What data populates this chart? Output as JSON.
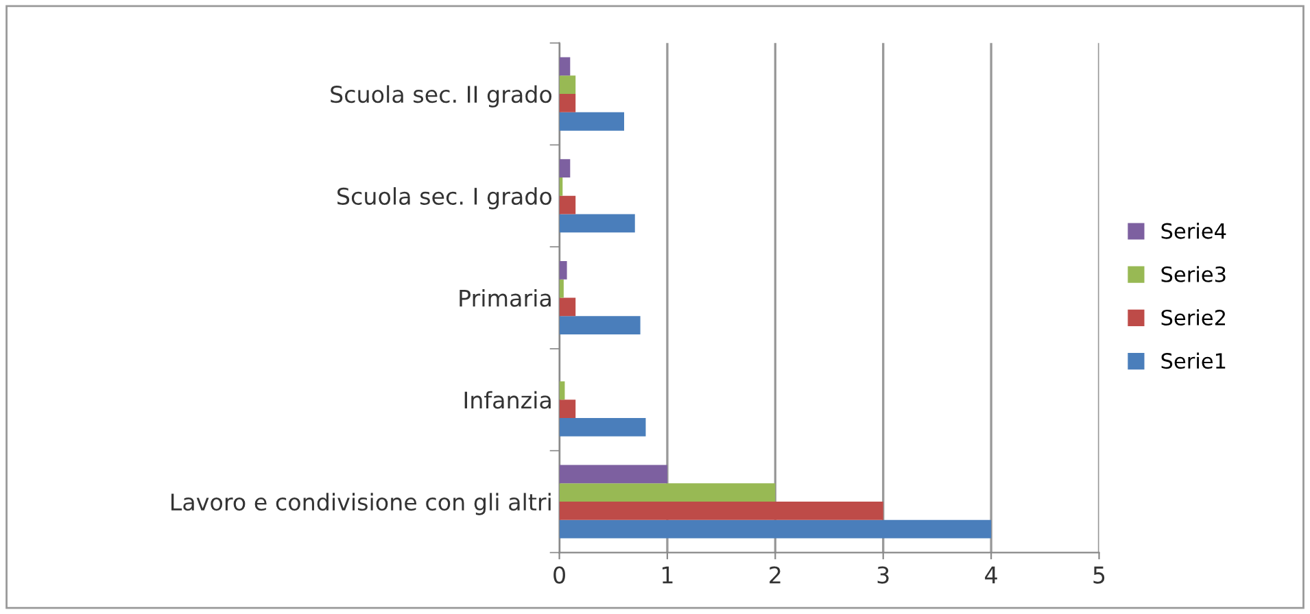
{
  "chart_data": {
    "type": "bar",
    "orientation": "horizontal",
    "categories": [
      "Scuola sec. II grado",
      "Scuola sec. I grado",
      "Primaria",
      "Infanzia",
      "Lavoro e condivisione con gli altri"
    ],
    "series": [
      {
        "name": "Serie1",
        "color": "#4a7ebb",
        "values": [
          0.6,
          0.7,
          0.75,
          0.8,
          4
        ]
      },
      {
        "name": "Serie2",
        "color": "#be4b48",
        "values": [
          0.15,
          0.15,
          0.15,
          0.15,
          3
        ]
      },
      {
        "name": "Serie3",
        "color": "#98b954",
        "values": [
          0.15,
          0.03,
          0.04,
          0.05,
          2
        ]
      },
      {
        "name": "Serie4",
        "color": "#7d60a0",
        "values": [
          0.1,
          0.1,
          0.07,
          0,
          1
        ]
      }
    ],
    "xlim": [
      0,
      5
    ],
    "xticks": [
      0,
      1,
      2,
      3,
      4,
      5
    ],
    "grid": "x",
    "legend": "right"
  }
}
